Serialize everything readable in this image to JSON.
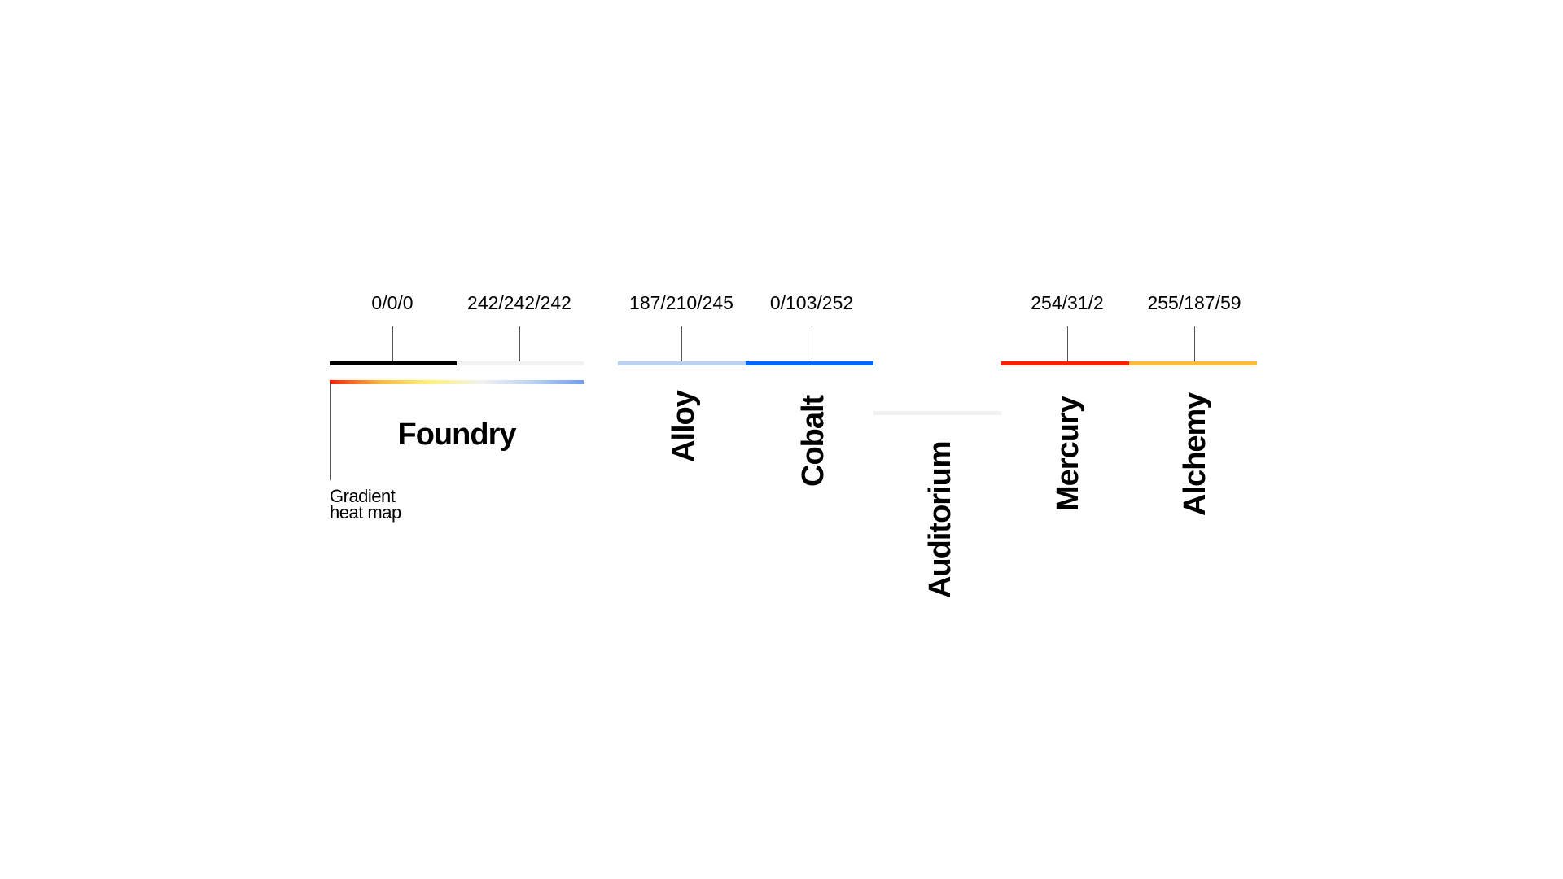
{
  "palettes": [
    {
      "id": "foundry",
      "name": "Foundry",
      "swatches": [
        {
          "rgb_label": "0/0/0",
          "color": "#000000"
        },
        {
          "rgb_label": "242/242/242",
          "color": "#F2F2F2"
        }
      ]
    },
    {
      "id": "alloy",
      "name": "Alloy",
      "swatches": [
        {
          "rgb_label": "187/210/245",
          "color": "#BBD2F5"
        }
      ]
    },
    {
      "id": "cobalt",
      "name": "Cobalt",
      "swatches": [
        {
          "rgb_label": "0/103/252",
          "color": "#0067FC"
        }
      ]
    },
    {
      "id": "auditorium",
      "name": "Auditorium",
      "swatches": [
        {
          "rgb_label": "",
          "color": "#F2F2F2"
        }
      ]
    },
    {
      "id": "mercury",
      "name": "Mercury",
      "swatches": [
        {
          "rgb_label": "254/31/2",
          "color": "#FE1F02"
        }
      ]
    },
    {
      "id": "alchemy",
      "name": "Alchemy",
      "swatches": [
        {
          "rgb_label": "255/187/59",
          "color": "#FFBB3B"
        }
      ]
    }
  ],
  "gradient": {
    "label_line1": "Gradient",
    "label_line2": "heat map",
    "stops": [
      "#FE1F02",
      "#FFBB3B",
      "#FFF27A",
      "#F2F2F2",
      "#BBD2F5",
      "#6D9EF2"
    ]
  }
}
